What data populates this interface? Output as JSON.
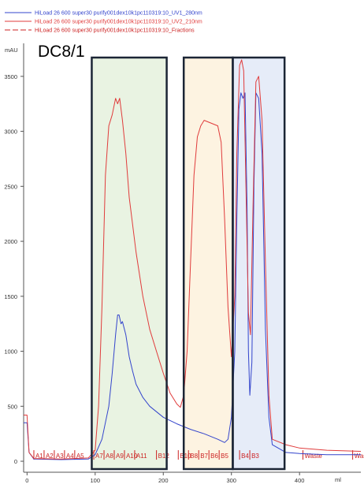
{
  "chart_data": {
    "type": "line",
    "annotation": "DC8/1",
    "ylabel": "mAU",
    "xlabel": "ml",
    "xlim": [
      -5,
      490
    ],
    "ylim": [
      -100,
      3800
    ],
    "x_ticks": [
      0,
      100,
      200,
      300,
      400
    ],
    "y_ticks": [
      0,
      500,
      1000,
      1500,
      2000,
      2500,
      3000,
      3500
    ],
    "legend": [
      {
        "label": "HiLoad 26 600 super30 purify001dex10k1pc110319:10_UV1_280nm",
        "color": "#3344cc",
        "dash": "solid"
      },
      {
        "label": "HiLoad 26 600 super30 purify001dex10k1pc110319:10_UV2_210nm",
        "color": "#e03b3b",
        "dash": "solid"
      },
      {
        "label": "HiLoad 26 600 super30 purify001dex10k1pc110319:10_Fractions",
        "color": "#cc2222",
        "dash": "dashed"
      }
    ],
    "fractions": [
      {
        "label": "A1",
        "x": 10
      },
      {
        "label": "A2",
        "x": 25
      },
      {
        "label": "A3",
        "x": 40
      },
      {
        "label": "A4",
        "x": 55
      },
      {
        "label": "A5",
        "x": 70
      },
      {
        "label": "A7",
        "x": 98
      },
      {
        "label": "A8",
        "x": 113
      },
      {
        "label": "A9",
        "x": 128
      },
      {
        "label": "A10",
        "x": 143
      },
      {
        "label": "A11",
        "x": 158
      },
      {
        "label": "B12",
        "x": 190
      },
      {
        "label": "B10",
        "x": 222
      },
      {
        "label": "B8",
        "x": 237
      },
      {
        "label": "B7",
        "x": 252
      },
      {
        "label": "B6",
        "x": 267
      },
      {
        "label": "B5",
        "x": 282
      },
      {
        "label": "B4",
        "x": 312
      },
      {
        "label": "B3",
        "x": 327
      },
      {
        "label": "Waste",
        "x": 405
      },
      {
        "label": "Was",
        "x": 478
      }
    ],
    "regions": [
      {
        "x0": 95,
        "x1": 205,
        "fill": "#e9f3e2"
      },
      {
        "x0": 230,
        "x1": 302,
        "fill": "#fdf3e1"
      },
      {
        "x0": 302,
        "x1": 378,
        "fill": "#e6ecf8"
      }
    ],
    "series": [
      {
        "name": "UV1_280nm",
        "color": "#3344cc",
        "x": [
          -5,
          0,
          3,
          10,
          50,
          90,
          100,
          110,
          120,
          125,
          130,
          133,
          135,
          138,
          140,
          145,
          150,
          155,
          160,
          170,
          180,
          200,
          220,
          240,
          260,
          280,
          290,
          295,
          300,
          305,
          308,
          311,
          314,
          317,
          320,
          323,
          325,
          327,
          330,
          333,
          336,
          340,
          345,
          350,
          355,
          360,
          380,
          400,
          440,
          490
        ],
        "y": [
          350,
          350,
          80,
          20,
          15,
          20,
          60,
          200,
          500,
          800,
          1150,
          1330,
          1330,
          1250,
          1270,
          1150,
          950,
          820,
          700,
          580,
          500,
          400,
          340,
          290,
          250,
          200,
          170,
          200,
          400,
          1000,
          2200,
          3200,
          3350,
          3300,
          3350,
          2300,
          1000,
          600,
          900,
          2500,
          3350,
          3300,
          2800,
          1200,
          400,
          150,
          80,
          70,
          60,
          60
        ]
      },
      {
        "name": "UV2_210nm",
        "color": "#e03b3b",
        "x": [
          -5,
          0,
          3,
          10,
          50,
          90,
          100,
          105,
          110,
          115,
          120,
          125,
          130,
          133,
          136,
          140,
          145,
          150,
          160,
          170,
          180,
          190,
          200,
          210,
          220,
          225,
          230,
          235,
          240,
          245,
          250,
          255,
          260,
          280,
          285,
          290,
          295,
          300,
          305,
          308,
          312,
          315,
          318,
          322,
          325,
          328,
          332,
          336,
          340,
          345,
          350,
          355,
          360,
          380,
          400,
          440,
          490
        ],
        "y": [
          420,
          420,
          80,
          25,
          20,
          30,
          100,
          500,
          1400,
          2600,
          3050,
          3150,
          3300,
          3250,
          3300,
          3100,
          2800,
          2400,
          1900,
          1500,
          1200,
          1000,
          800,
          620,
          520,
          490,
          600,
          1000,
          1800,
          2600,
          2950,
          3050,
          3100,
          3050,
          2900,
          2200,
          1400,
          950,
          1500,
          2800,
          3600,
          3650,
          3550,
          2300,
          1350,
          1150,
          2400,
          3450,
          3500,
          3100,
          1800,
          600,
          200,
          150,
          120,
          100,
          90
        ]
      }
    ]
  }
}
